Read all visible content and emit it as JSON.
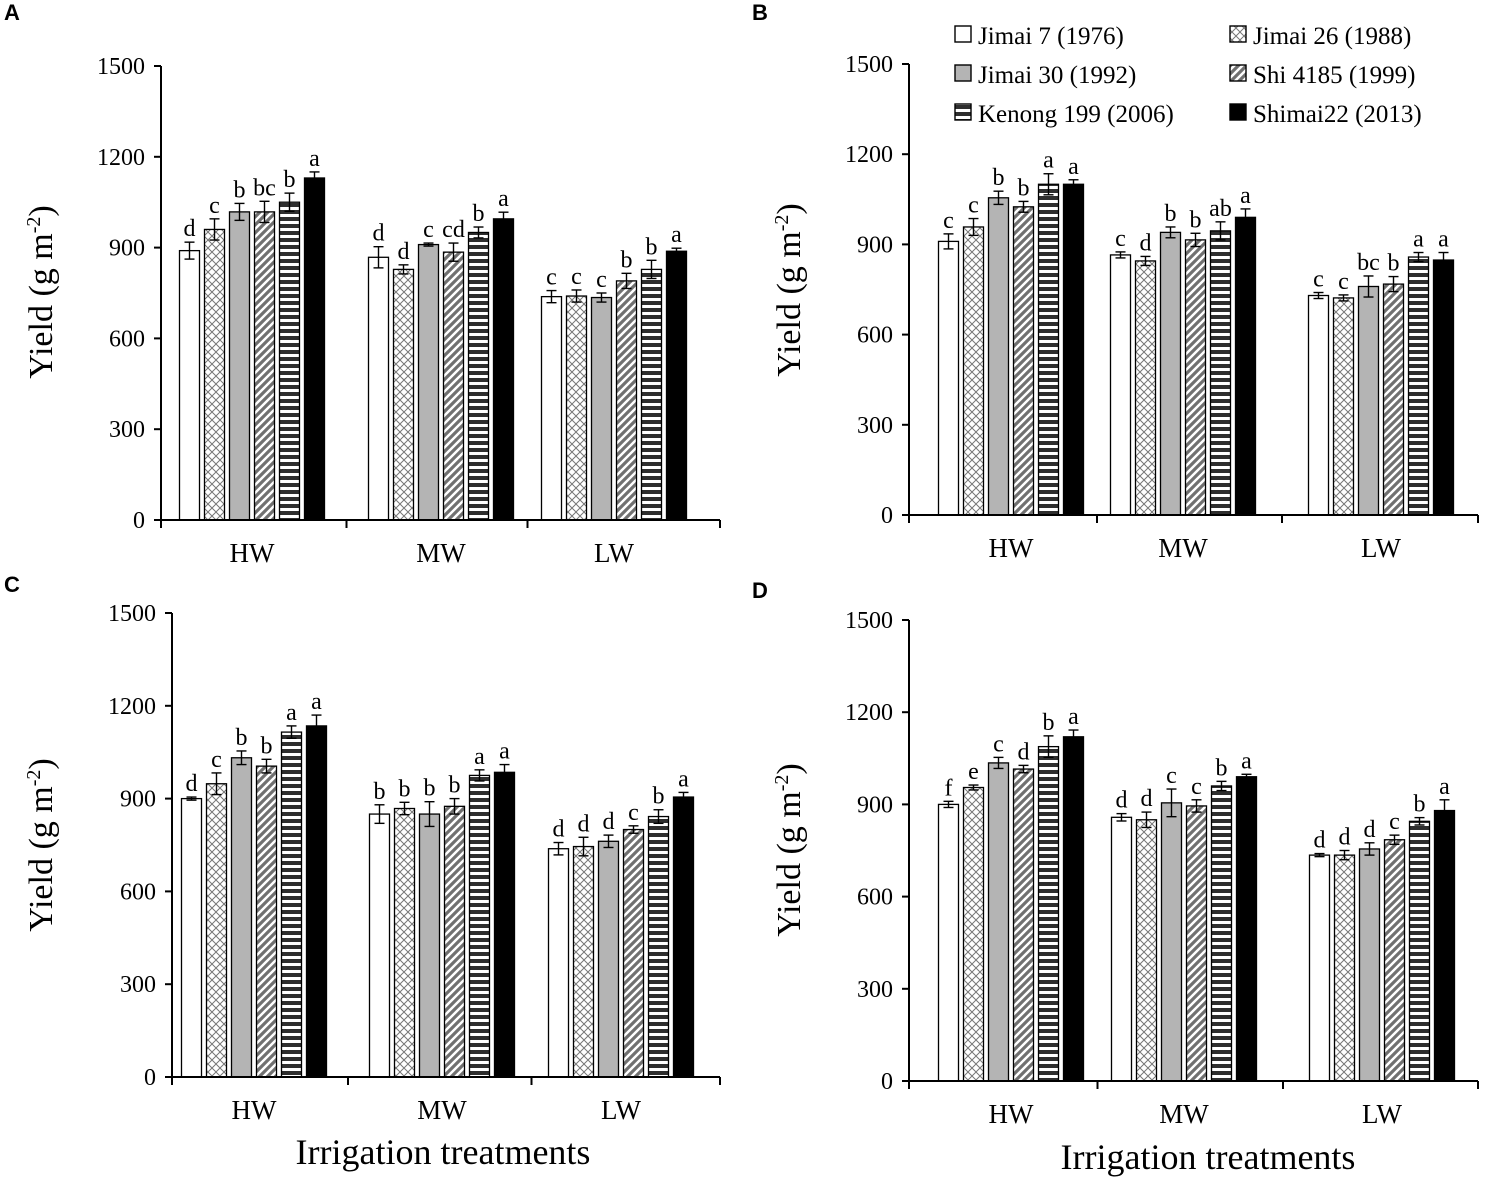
{
  "figure": {
    "x_axis_title": "Irrigation treatments",
    "y_axis_title": "Yield (g m",
    "y_axis_title_sup": "-2",
    "y_axis_title_close": ")"
  },
  "legend": {
    "entries": [
      {
        "label": "Jimai 7 (1976)",
        "pattern": "white"
      },
      {
        "label": "Jimai 26 (1988)",
        "pattern": "crosshatch"
      },
      {
        "label": "Jimai 30 (1992)",
        "pattern": "gray"
      },
      {
        "label": "Shi 4185 (1999)",
        "pattern": "diagonal"
      },
      {
        "label": "Kenong 199 (2006)",
        "pattern": "horizontal"
      },
      {
        "label": "Shimai22 (2013)",
        "pattern": "black"
      }
    ]
  },
  "colors": {
    "bar_stroke": "#000000",
    "gray_fill": "#b4b4b4",
    "black_fill": "#000000",
    "white_fill": "#ffffff"
  },
  "chart_data": [
    {
      "panel": "A",
      "type": "bar",
      "categories": [
        "HW",
        "MW",
        "LW"
      ],
      "ylim": [
        0,
        1500
      ],
      "yticks": [
        0,
        300,
        600,
        900,
        1200,
        1500
      ],
      "series": [
        {
          "name": "Jimai 7 (1976)",
          "values": [
            890,
            868,
            738
          ],
          "errors": [
            28,
            35,
            20
          ],
          "letters": [
            "d",
            "d",
            "c"
          ]
        },
        {
          "name": "Jimai 26 (1988)",
          "values": [
            960,
            828,
            740
          ],
          "errors": [
            35,
            15,
            20
          ],
          "letters": [
            "c",
            "d",
            "c"
          ]
        },
        {
          "name": "Jimai 30 (1992)",
          "values": [
            1018,
            910,
            735
          ],
          "errors": [
            28,
            5,
            15
          ],
          "letters": [
            "b",
            "c",
            "c"
          ]
        },
        {
          "name": "Shi 4185 (1999)",
          "values": [
            1018,
            885,
            790
          ],
          "errors": [
            35,
            30,
            25
          ],
          "letters": [
            "bc",
            "cd",
            "b"
          ]
        },
        {
          "name": "Kenong 199 (2006)",
          "values": [
            1050,
            950,
            828
          ],
          "errors": [
            30,
            18,
            30
          ],
          "letters": [
            "b",
            "b",
            "b"
          ]
        },
        {
          "name": "Shimai22 (2013)",
          "values": [
            1130,
            995,
            888
          ],
          "errors": [
            20,
            22,
            10
          ],
          "letters": [
            "a",
            "a",
            "a"
          ]
        }
      ]
    },
    {
      "panel": "B",
      "type": "bar",
      "categories": [
        "HW",
        "MW",
        "LW"
      ],
      "ylim": [
        0,
        1500
      ],
      "yticks": [
        0,
        300,
        600,
        900,
        1200,
        1500
      ],
      "series": [
        {
          "name": "Jimai 7 (1976)",
          "values": [
            910,
            865,
            730
          ],
          "errors": [
            25,
            10,
            10
          ],
          "letters": [
            "c",
            "c",
            "c"
          ]
        },
        {
          "name": "Jimai 26 (1988)",
          "values": [
            958,
            845,
            722
          ],
          "errors": [
            28,
            15,
            10
          ],
          "letters": [
            "c",
            "d",
            "c"
          ]
        },
        {
          "name": "Jimai 30 (1992)",
          "values": [
            1055,
            940,
            760
          ],
          "errors": [
            22,
            18,
            35
          ],
          "letters": [
            "b",
            "b",
            "bc"
          ]
        },
        {
          "name": "Shi 4185 (1999)",
          "values": [
            1025,
            915,
            768
          ],
          "errors": [
            18,
            22,
            25
          ],
          "letters": [
            "b",
            "b",
            "b"
          ]
        },
        {
          "name": "Kenong 199 (2006)",
          "values": [
            1100,
            945,
            858
          ],
          "errors": [
            35,
            30,
            15
          ],
          "letters": [
            "a",
            "ab",
            "a"
          ]
        },
        {
          "name": "Shimai22 (2013)",
          "values": [
            1100,
            990,
            848
          ],
          "errors": [
            15,
            28,
            25
          ],
          "letters": [
            "a",
            "a",
            "a"
          ]
        }
      ]
    },
    {
      "panel": "C",
      "type": "bar",
      "categories": [
        "HW",
        "MW",
        "LW"
      ],
      "ylim": [
        0,
        1500
      ],
      "yticks": [
        0,
        300,
        600,
        900,
        1200,
        1500
      ],
      "series": [
        {
          "name": "Jimai 7 (1976)",
          "values": [
            900,
            850,
            738
          ],
          "errors": [
            5,
            30,
            20
          ],
          "letters": [
            "d",
            "b",
            "d"
          ]
        },
        {
          "name": "Jimai 26 (1988)",
          "values": [
            948,
            868,
            745
          ],
          "errors": [
            35,
            20,
            30
          ],
          "letters": [
            "c",
            "b",
            "d"
          ]
        },
        {
          "name": "Jimai 30 (1992)",
          "values": [
            1032,
            850,
            762
          ],
          "errors": [
            22,
            40,
            20
          ],
          "letters": [
            "b",
            "b",
            "d"
          ]
        },
        {
          "name": "Shi 4185 (1999)",
          "values": [
            1005,
            875,
            800
          ],
          "errors": [
            22,
            25,
            12
          ],
          "letters": [
            "b",
            "b",
            "c"
          ]
        },
        {
          "name": "Kenong 199 (2006)",
          "values": [
            1115,
            975,
            842
          ],
          "errors": [
            20,
            18,
            22
          ],
          "letters": [
            "a",
            "a",
            "b"
          ]
        },
        {
          "name": "Shimai22 (2013)",
          "values": [
            1135,
            985,
            905
          ],
          "errors": [
            35,
            25,
            15
          ],
          "letters": [
            "a",
            "a",
            "a"
          ]
        }
      ]
    },
    {
      "panel": "D",
      "type": "bar",
      "categories": [
        "HW",
        "MW",
        "LW"
      ],
      "ylim": [
        0,
        1500
      ],
      "yticks": [
        0,
        300,
        600,
        900,
        1200,
        1500
      ],
      "series": [
        {
          "name": "Jimai 7 (1976)",
          "values": [
            900,
            858,
            735
          ],
          "errors": [
            10,
            12,
            5
          ],
          "letters": [
            "f",
            "d",
            "d"
          ]
        },
        {
          "name": "Jimai 26 (1988)",
          "values": [
            955,
            850,
            735
          ],
          "errors": [
            8,
            25,
            15
          ],
          "letters": [
            "e",
            "d",
            "d"
          ]
        },
        {
          "name": "Jimai 30 (1992)",
          "values": [
            1035,
            905,
            755
          ],
          "errors": [
            18,
            45,
            20
          ],
          "letters": [
            "c",
            "c",
            "d"
          ]
        },
        {
          "name": "Shi 4185 (1999)",
          "values": [
            1015,
            895,
            785
          ],
          "errors": [
            12,
            20,
            15
          ],
          "letters": [
            "d",
            "c",
            "c"
          ]
        },
        {
          "name": "Kenong 199 (2006)",
          "values": [
            1088,
            960,
            845
          ],
          "errors": [
            35,
            15,
            12
          ],
          "letters": [
            "b",
            "b",
            "b"
          ]
        },
        {
          "name": "Shimai22 (2013)",
          "values": [
            1120,
            990,
            880
          ],
          "errors": [
            22,
            8,
            35
          ],
          "letters": [
            "a",
            "a",
            "a"
          ]
        }
      ]
    }
  ]
}
